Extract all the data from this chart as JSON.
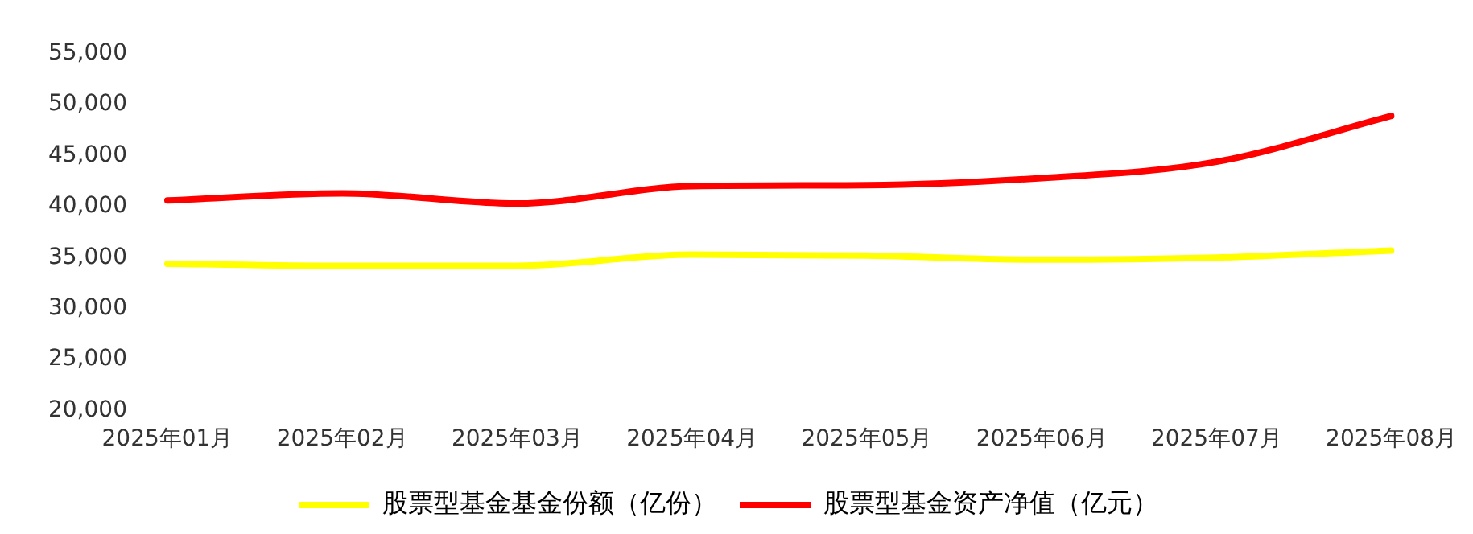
{
  "chart_data": {
    "type": "line",
    "categories": [
      "2025年01月",
      "2025年02月",
      "2025年03月",
      "2025年04月",
      "2025年05月",
      "2025年06月",
      "2025年07月",
      "2025年08月"
    ],
    "series": [
      {
        "name": "股票型基金基金份额（亿份）",
        "color": "#ffff00",
        "values": [
          34400,
          34200,
          34200,
          35300,
          35200,
          34800,
          35000,
          35700
        ]
      },
      {
        "name": "股票型基金资产净值（亿元）",
        "color": "#ff0000",
        "values": [
          40600,
          41300,
          40300,
          42000,
          42100,
          42800,
          44400,
          48900
        ]
      }
    ],
    "ylim": [
      20000,
      55000
    ],
    "yticks": [
      {
        "value": 20000,
        "label": "20,000"
      },
      {
        "value": 25000,
        "label": "25,000"
      },
      {
        "value": 30000,
        "label": "30,000"
      },
      {
        "value": 35000,
        "label": "35,000"
      },
      {
        "value": 40000,
        "label": "40,000"
      },
      {
        "value": 45000,
        "label": "45,000"
      },
      {
        "value": 50000,
        "label": "50,000"
      },
      {
        "value": 55000,
        "label": "55,000"
      }
    ],
    "grid": false,
    "legend": "bottom",
    "marker": "none",
    "line_style": "solid"
  }
}
